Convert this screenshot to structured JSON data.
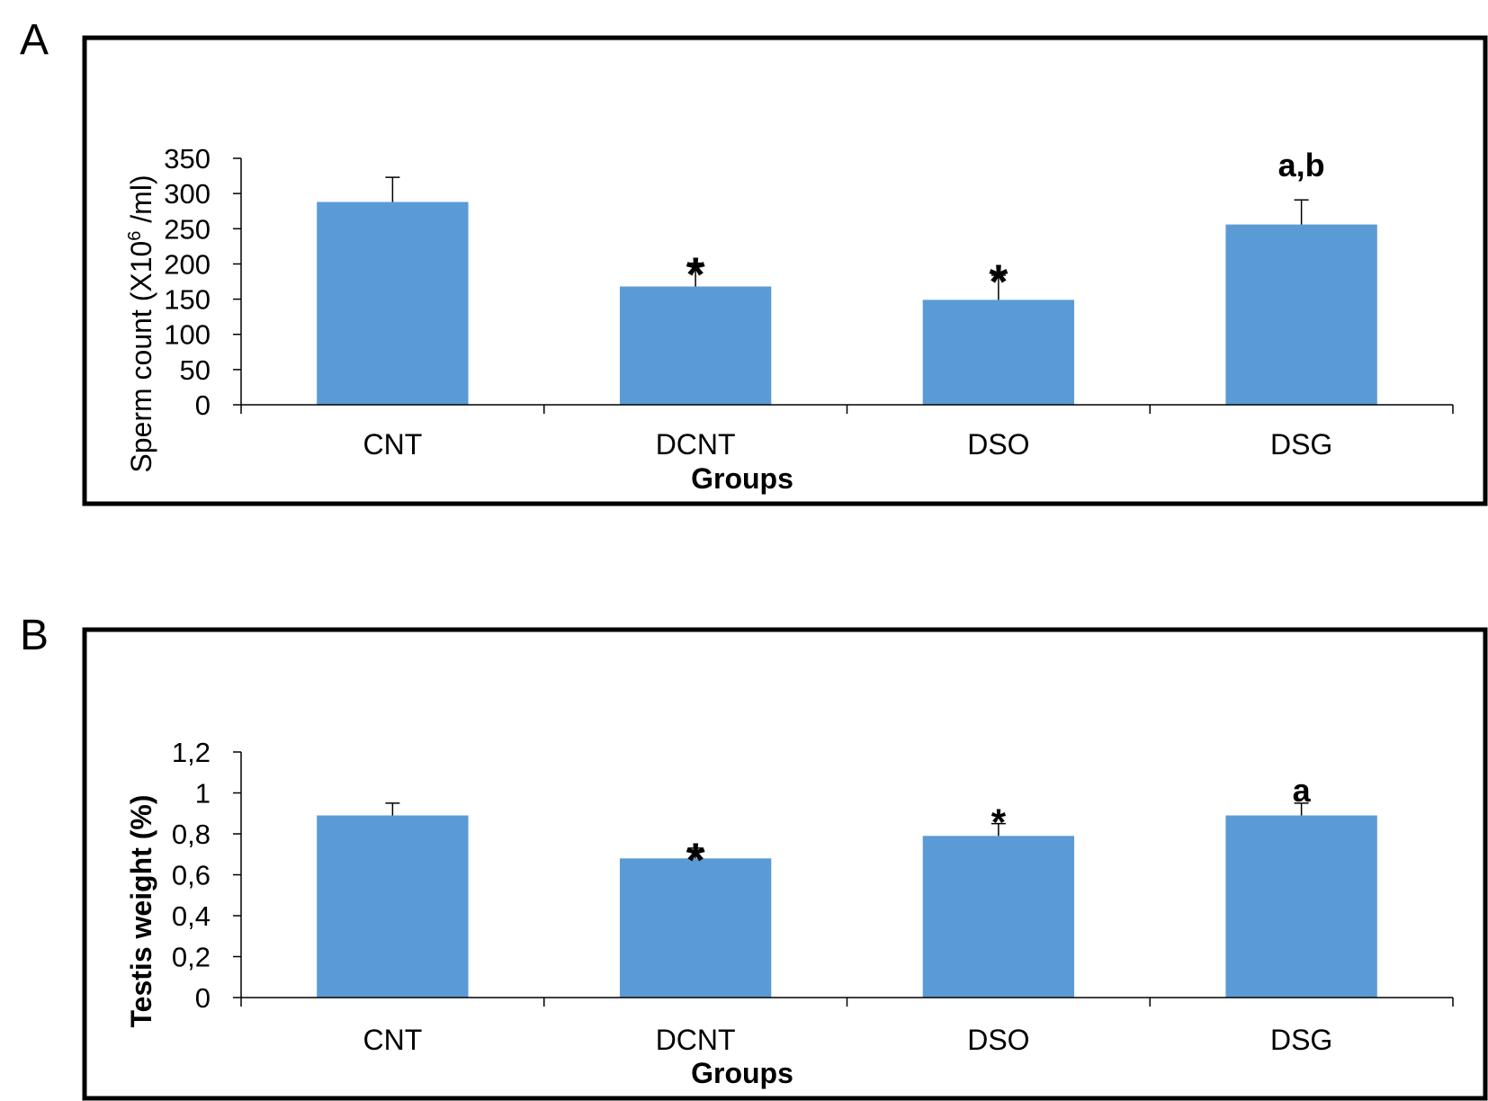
{
  "colors": {
    "bar": "#5b9bd5",
    "axis": "#000000",
    "frame": "#000000"
  },
  "chart_data": [
    {
      "type": "bar",
      "panel_label": "A",
      "categories": [
        "CNT",
        "DCNT",
        "DSO",
        "DSG"
      ],
      "values": [
        288,
        168,
        149,
        256
      ],
      "errors": [
        35,
        33,
        35,
        35
      ],
      "annotations": [
        "",
        "*",
        "*",
        "a,b"
      ],
      "title": "",
      "xlabel": "Groups",
      "ylabel_prefix": "Sperm count (X10",
      "ylabel_sup": "6",
      "ylabel_suffix": " /ml)",
      "ylim": [
        0,
        350
      ],
      "yticks": [
        0,
        50,
        100,
        150,
        200,
        250,
        300,
        350
      ],
      "ytick_labels": [
        "0",
        "50",
        "100",
        "150",
        "200",
        "250",
        "300",
        "350"
      ],
      "grid": false,
      "legend": "none"
    },
    {
      "type": "bar",
      "panel_label": "B",
      "categories": [
        "CNT",
        "DCNT",
        "DSO",
        "DSG"
      ],
      "values": [
        0.89,
        0.68,
        0.79,
        0.89
      ],
      "errors": [
        0.06,
        0.05,
        0.06,
        0.06
      ],
      "annotations": [
        "",
        "*",
        "*",
        "a"
      ],
      "title": "",
      "xlabel": "Groups",
      "ylabel": "Testis weight (%)",
      "ylim": [
        0,
        1.2
      ],
      "yticks": [
        0,
        0.2,
        0.4,
        0.6,
        0.8,
        1.0,
        1.2
      ],
      "ytick_labels": [
        "0",
        "0,2",
        "0,4",
        "0,6",
        "0,8",
        "1",
        "1,2"
      ],
      "grid": false,
      "legend": "none"
    }
  ]
}
